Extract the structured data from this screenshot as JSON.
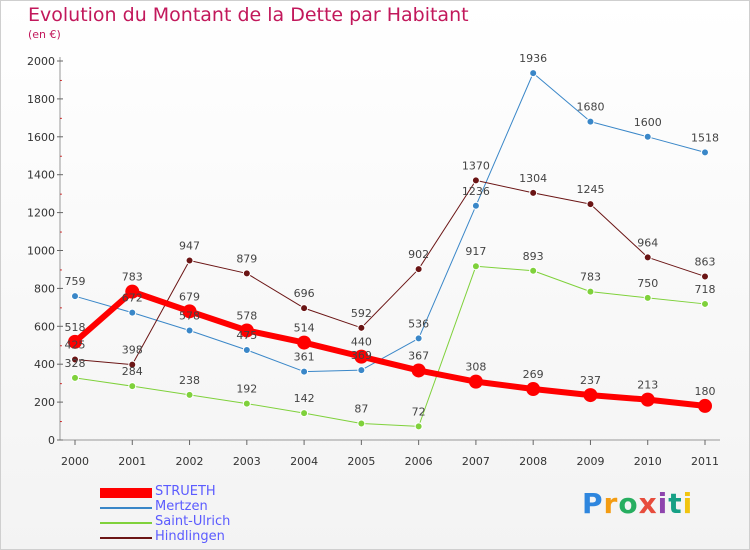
{
  "header": {
    "title": "Evolution du Montant de la Dette par Habitant",
    "subtitle": "(en €)"
  },
  "logo": {
    "text": "Proxiti",
    "colors": [
      "#2e86de",
      "#f39c12",
      "#27ae60",
      "#e74c3c",
      "#8e44ad",
      "#16a085",
      "#f1c40f"
    ]
  },
  "chart_data": {
    "type": "line",
    "x": [
      "2000",
      "2001",
      "2002",
      "2003",
      "2004",
      "2005",
      "2006",
      "2007",
      "2008",
      "2009",
      "2010",
      "2011"
    ],
    "ylim": [
      0,
      2000
    ],
    "yticks": [
      0,
      200,
      400,
      600,
      800,
      1000,
      1200,
      1400,
      1600,
      1800,
      2000
    ],
    "grid": false,
    "legend_position": "bottom-left",
    "series": [
      {
        "name": "STRUETH",
        "color": "#ff0000",
        "values": [
          518,
          783,
          679,
          578,
          514,
          440,
          367,
          308,
          269,
          237,
          213,
          180
        ]
      },
      {
        "name": "Mertzen",
        "color": "#3a87c8",
        "values": [
          759,
          672,
          578,
          475,
          361,
          369,
          536,
          1236,
          1936,
          1680,
          1600,
          1518
        ]
      },
      {
        "name": "Saint-Ulrich",
        "color": "#7fd13b",
        "values": [
          328,
          284,
          238,
          192,
          142,
          87,
          72,
          917,
          893,
          783,
          750,
          718
        ]
      },
      {
        "name": "Hindlingen",
        "color": "#6b1515",
        "values": [
          425,
          398,
          947,
          879,
          696,
          592,
          902,
          1370,
          1304,
          1245,
          964,
          863
        ]
      }
    ]
  }
}
